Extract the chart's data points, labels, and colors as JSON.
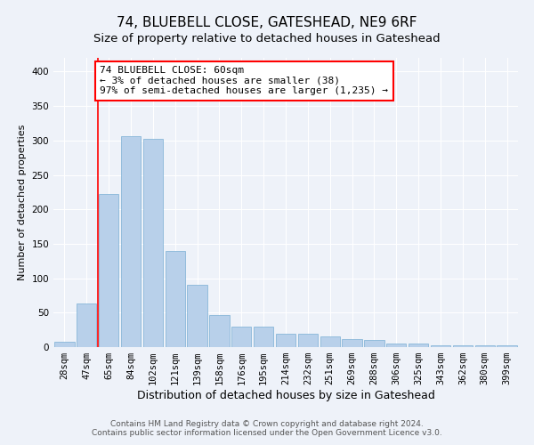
{
  "title": "74, BLUEBELL CLOSE, GATESHEAD, NE9 6RF",
  "subtitle": "Size of property relative to detached houses in Gateshead",
  "xlabel": "Distribution of detached houses by size in Gateshead",
  "ylabel": "Number of detached properties",
  "categories": [
    "28sqm",
    "47sqm",
    "65sqm",
    "84sqm",
    "102sqm",
    "121sqm",
    "139sqm",
    "158sqm",
    "176sqm",
    "195sqm",
    "214sqm",
    "232sqm",
    "251sqm",
    "269sqm",
    "288sqm",
    "306sqm",
    "325sqm",
    "343sqm",
    "362sqm",
    "380sqm",
    "399sqm"
  ],
  "values": [
    8,
    63,
    222,
    306,
    303,
    140,
    90,
    46,
    30,
    30,
    20,
    20,
    15,
    12,
    10,
    5,
    5,
    3,
    3,
    3,
    3
  ],
  "bar_color": "#b8d0ea",
  "bar_edge_color": "#7aafd4",
  "red_line_x": 1.5,
  "annotation_box_text": "74 BLUEBELL CLOSE: 60sqm\n← 3% of detached houses are smaller (38)\n97% of semi-detached houses are larger (1,235) →",
  "ylim": [
    0,
    420
  ],
  "yticks": [
    0,
    50,
    100,
    150,
    200,
    250,
    300,
    350,
    400
  ],
  "footer_line1": "Contains HM Land Registry data © Crown copyright and database right 2024.",
  "footer_line2": "Contains public sector information licensed under the Open Government Licence v3.0.",
  "background_color": "#eef2f9",
  "plot_bg_color": "#eef2f9",
  "grid_color": "#ffffff",
  "title_fontsize": 11,
  "subtitle_fontsize": 9.5,
  "xlabel_fontsize": 9,
  "ylabel_fontsize": 8,
  "tick_fontsize": 7.5,
  "annotation_fontsize": 8,
  "footer_fontsize": 6.5
}
